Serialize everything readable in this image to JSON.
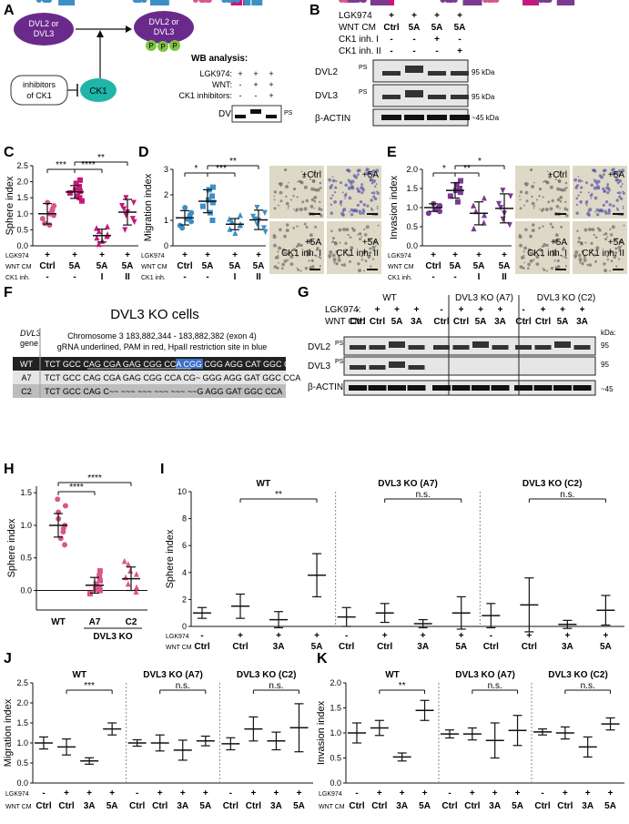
{
  "figure": {
    "panel_letters": [
      "A",
      "B",
      "C",
      "D",
      "E",
      "F",
      "G",
      "H",
      "I",
      "J",
      "K"
    ]
  },
  "colors": {
    "purple": "#6a2a8c",
    "teal": "#1fb5a8",
    "green": "#7dc242",
    "pink": "#d9568c",
    "magenta": "#c8177a",
    "blue": "#3b8fc7",
    "violet": "#7b3a92"
  },
  "panelA": {
    "dvl_node": "DVL2 or DVL3",
    "dvl_p_node": "DVL2 or DVL3",
    "phospho": "P",
    "inhibitors_box": "inhibitors of CK1",
    "ck1": "CK1",
    "wb_title": "WB analysis:",
    "row_labels": [
      "LGK974:",
      "WNT:",
      "CK1 inhibitors:"
    ],
    "row_signs": [
      [
        "+",
        "+",
        "+"
      ],
      [
        "-",
        "+",
        "+"
      ],
      [
        "-",
        "-",
        "+"
      ]
    ],
    "blot_label": "DVL",
    "ps_label": "PS"
  },
  "panelB": {
    "row_labels": [
      "LGK974",
      "WNT CM",
      "CK1 inh. I",
      "CK1 inh. II"
    ],
    "lanes": [
      [
        "+",
        "+",
        "+",
        "+"
      ],
      [
        "Ctrl",
        "5A",
        "5A",
        "5A"
      ],
      [
        "-",
        "-",
        "+",
        "-"
      ],
      [
        "-",
        "-",
        "-",
        "+"
      ]
    ],
    "blots": [
      "DVL2",
      "DVL3",
      "β-ACTIN"
    ],
    "ps": "PS",
    "mw": [
      "95 kDa",
      "95 kDa",
      "~45 kDa"
    ]
  },
  "panelC": {
    "ylabel": "Sphere index",
    "yticks": [
      "0.0",
      "0.5",
      "1.0",
      "1.5",
      "2.0",
      "2.5"
    ],
    "sig": [
      "***",
      "****",
      "**"
    ],
    "rows": {
      "labels": [
        "LGK974",
        "WNT CM",
        "CK1 inh."
      ],
      "values": [
        [
          "+",
          "+",
          "+",
          "+"
        ],
        [
          "Ctrl",
          "5A",
          "5A",
          "5A"
        ],
        [
          "-",
          "-",
          "I",
          "II"
        ]
      ]
    }
  },
  "panelD": {
    "ylabel": "Migration index",
    "yticks": [
      "0",
      "1",
      "2",
      "3"
    ],
    "sig": [
      "*",
      "***",
      "**"
    ],
    "rows": {
      "labels": [
        "LGK974",
        "WNT CM",
        "CK1 inh."
      ],
      "values": [
        [
          "+",
          "+",
          "+",
          "+"
        ],
        [
          "Ctrl",
          "5A",
          "5A",
          "5A"
        ],
        [
          "-",
          "-",
          "I",
          "II"
        ]
      ]
    },
    "images": [
      "+Ctrl",
      "+5A",
      "+5A CK1 inh. I",
      "+5A CK1 inh. II"
    ]
  },
  "panelE": {
    "ylabel": "Invasion index",
    "yticks": [
      "0.0",
      "0.5",
      "1.0",
      "1.5",
      "2.0"
    ],
    "sig": [
      "*",
      "**",
      "*"
    ],
    "rows": {
      "labels": [
        "LGK974",
        "WNT CM",
        "CK1 inh."
      ],
      "values": [
        [
          "+",
          "+",
          "+",
          "+"
        ],
        [
          "Ctrl",
          "5A",
          "5A",
          "5A"
        ],
        [
          "-",
          "-",
          "I",
          "II"
        ]
      ]
    },
    "images": [
      "+Ctrl",
      "+5A",
      "+5A CK1 inh. I",
      "+5A CK1 inh. II"
    ]
  },
  "panelF": {
    "title": "DVL3 KO cells",
    "gene_label": "DVL3 gene",
    "header_line1": "Chromosome 3 183,882,344 - 183,882,382 (exon 4)",
    "header_line2": "gRNA underlined, PAM in red, HpaII restriction site in blue",
    "rows": [
      {
        "label": "WT",
        "seq": "TCT GCC CAG CGA GAG CGG CCA CGG CGG AGG CAT GGC CCA"
      },
      {
        "label": "A7",
        "seq": "TCT GCC CAG CGA GAG CGG CCA CG~ GGG AGG GAT GGC CCA"
      },
      {
        "label": "C2",
        "seq": "TCT GCC CAG C~~ ~~~ ~~~ ~~~ ~~~ ~~G AGG GAT GGC CCA"
      }
    ]
  },
  "panelG": {
    "group_labels": [
      "WT",
      "DVL3 KO (A7)",
      "DVL3 KO (C2)"
    ],
    "row_labels": [
      "LGK974:",
      "WNT CM:"
    ],
    "lgk": [
      "-",
      "+",
      "+",
      "+",
      "-",
      "+",
      "+",
      "+",
      "-",
      "+",
      "+",
      "+"
    ],
    "wnt": [
      "Ctrl",
      "Ctrl",
      "5A",
      "3A",
      "Ctrl",
      "Ctrl",
      "5A",
      "3A",
      "Ctrl",
      "Ctrl",
      "5A",
      "3A"
    ],
    "kda_label": "kDa:",
    "blots": [
      "DVL2",
      "DVL3",
      "β-ACTIN"
    ],
    "ps": "PS",
    "mw": [
      "95",
      "95",
      "~45"
    ]
  },
  "panelH": {
    "ylabel": "Sphere index",
    "yticks": [
      "0.0",
      "0.5",
      "1.0",
      "1.5"
    ],
    "sig": [
      "****",
      "****"
    ],
    "categories": [
      "WT",
      "A7",
      "C2"
    ],
    "group_label": "DVL3 KO"
  },
  "panelI": {
    "ylabel": "Sphere index",
    "yticks": [
      "0",
      "2",
      "4",
      "6",
      "8",
      "10"
    ],
    "groups": [
      "WT",
      "DVL3 KO (A7)",
      "DVL3 KO (C2)"
    ],
    "sig": [
      "**",
      "n.s.",
      "n.s."
    ],
    "lgk": [
      "-",
      "+",
      "+",
      "+"
    ],
    "wnt": [
      "Ctrl",
      "Ctrl",
      "3A",
      "5A"
    ],
    "row_labels": [
      "LGK974",
      "WNT CM"
    ]
  },
  "panelJ": {
    "ylabel": "Migration index",
    "yticks": [
      "0.0",
      "0.5",
      "1.0",
      "1.5",
      "2.0",
      "2.5"
    ],
    "groups": [
      "WT",
      "DVL3 KO (A7)",
      "DVL3 KO (C2)"
    ],
    "sig": [
      "***",
      "n.s.",
      "n.s."
    ],
    "lgk": [
      "-",
      "+",
      "+",
      "+"
    ],
    "wnt": [
      "Ctrl",
      "Ctrl",
      "3A",
      "5A"
    ],
    "row_labels": [
      "LGK974",
      "WNT CM"
    ]
  },
  "panelK": {
    "ylabel": "Invasion index",
    "yticks": [
      "0.0",
      "0.5",
      "1.0",
      "1.5",
      "2.0"
    ],
    "groups": [
      "WT",
      "DVL3 KO (A7)",
      "DVL3 KO (C2)"
    ],
    "sig": [
      "**",
      "n.s.",
      "n.s."
    ],
    "lgk": [
      "-",
      "+",
      "+",
      "+"
    ],
    "wnt": [
      "Ctrl",
      "Ctrl",
      "3A",
      "5A"
    ],
    "row_labels": [
      "LGK974",
      "WNT CM"
    ]
  },
  "chart_data": [
    {
      "panel": "C",
      "type": "scatter",
      "ylabel": "Sphere index",
      "ylim": [
        0,
        2.5
      ],
      "categories": [
        "Ctrl",
        "5A",
        "5A I",
        "5A II"
      ],
      "means": [
        1.0,
        1.68,
        0.32,
        1.05
      ],
      "sd": [
        0.32,
        0.2,
        0.2,
        0.4
      ],
      "points": [
        [
          0.65,
          0.7,
          0.85,
          0.95,
          1.0,
          1.1,
          1.15,
          1.25,
          1.35
        ],
        [
          1.4,
          1.5,
          1.55,
          1.65,
          1.7,
          1.75,
          1.85,
          1.95,
          2.05
        ],
        [
          0.05,
          0.15,
          0.25,
          0.3,
          0.35,
          0.45,
          0.55,
          0.6
        ],
        [
          0.5,
          0.75,
          0.85,
          0.95,
          1.05,
          1.15,
          1.25,
          1.35,
          1.5
        ]
      ]
    },
    {
      "panel": "D",
      "type": "scatter",
      "ylabel": "Migration index",
      "ylim": [
        0,
        3
      ],
      "categories": [
        "Ctrl",
        "5A",
        "5A I",
        "5A II"
      ],
      "means": [
        1.1,
        1.75,
        0.85,
        1.02
      ],
      "sd": [
        0.28,
        0.45,
        0.22,
        0.38
      ],
      "points": [
        [
          0.7,
          0.8,
          0.95,
          1.05,
          1.1,
          1.2,
          1.3,
          1.5
        ],
        [
          1.0,
          1.3,
          1.55,
          1.7,
          1.8,
          1.95,
          2.2,
          2.3
        ],
        [
          0.5,
          0.65,
          0.8,
          0.85,
          0.95,
          1.05,
          1.2
        ],
        [
          0.55,
          0.7,
          0.85,
          1.0,
          1.05,
          1.15,
          1.3,
          1.5
        ]
      ]
    },
    {
      "panel": "E",
      "type": "scatter",
      "ylabel": "Invasion index",
      "ylim": [
        0,
        2
      ],
      "categories": [
        "Ctrl",
        "5A",
        "5A I",
        "5A II"
      ],
      "means": [
        1.0,
        1.45,
        0.85,
        0.98
      ],
      "sd": [
        0.1,
        0.2,
        0.3,
        0.38
      ],
      "points": [
        [
          0.85,
          0.9,
          0.95,
          1.0,
          1.0,
          1.05,
          1.1
        ],
        [
          1.15,
          1.3,
          1.4,
          1.45,
          1.5,
          1.6,
          1.7
        ],
        [
          0.45,
          0.6,
          0.8,
          0.9,
          1.05,
          1.25
        ],
        [
          0.55,
          0.7,
          0.85,
          1.0,
          1.1,
          1.3,
          1.45
        ]
      ]
    },
    {
      "panel": "H",
      "type": "scatter",
      "ylabel": "Sphere index",
      "ylim": [
        -0.3,
        1.6
      ],
      "categories": [
        "WT",
        "A7",
        "C2"
      ],
      "means": [
        1.0,
        0.08,
        0.18
      ],
      "sd": [
        0.18,
        0.12,
        0.18
      ],
      "points": [
        [
          0.7,
          0.8,
          0.9,
          0.95,
          1.0,
          1.1,
          1.2,
          1.3,
          1.4
        ],
        [
          -0.05,
          0.0,
          0.02,
          0.05,
          0.1,
          0.15,
          0.22,
          0.3
        ],
        [
          -0.02,
          0.05,
          0.1,
          0.2,
          0.25,
          0.3,
          0.4,
          0.45
        ]
      ]
    },
    {
      "panel": "I",
      "type": "scatter",
      "ylabel": "Sphere index",
      "ylim": [
        0,
        10
      ],
      "groups": [
        {
          "name": "WT",
          "means": [
            1.0,
            1.5,
            0.5,
            3.8
          ],
          "sd": [
            0.4,
            0.9,
            0.6,
            1.6
          ]
        },
        {
          "name": "DVL3 KO (A7)",
          "means": [
            0.7,
            1.0,
            0.2,
            1.0
          ],
          "sd": [
            0.7,
            0.7,
            0.3,
            1.2
          ]
        },
        {
          "name": "DVL3 KO (C2)",
          "means": [
            0.8,
            1.6,
            0.15,
            1.2
          ],
          "sd": [
            0.9,
            2.0,
            0.3,
            1.1
          ]
        }
      ]
    },
    {
      "panel": "J",
      "type": "scatter",
      "ylabel": "Migration index",
      "ylim": [
        0,
        2.5
      ],
      "groups": [
        {
          "name": "WT",
          "means": [
            1.0,
            0.9,
            0.55,
            1.35
          ],
          "sd": [
            0.15,
            0.2,
            0.08,
            0.15
          ]
        },
        {
          "name": "DVL3 KO (A7)",
          "means": [
            1.0,
            1.0,
            0.82,
            1.05
          ],
          "sd": [
            0.08,
            0.2,
            0.25,
            0.12
          ]
        },
        {
          "name": "DVL3 KO (C2)",
          "means": [
            0.98,
            1.35,
            1.05,
            1.38
          ],
          "sd": [
            0.15,
            0.3,
            0.22,
            0.6
          ]
        }
      ]
    },
    {
      "panel": "K",
      "type": "scatter",
      "ylabel": "Invasion index",
      "ylim": [
        0,
        2
      ],
      "groups": [
        {
          "name": "WT",
          "means": [
            1.0,
            1.1,
            0.52,
            1.45
          ],
          "sd": [
            0.2,
            0.15,
            0.08,
            0.2
          ]
        },
        {
          "name": "DVL3 KO (A7)",
          "means": [
            0.98,
            0.98,
            0.85,
            1.05
          ],
          "sd": [
            0.08,
            0.12,
            0.35,
            0.3
          ]
        },
        {
          "name": "DVL3 KO (C2)",
          "means": [
            1.02,
            1.0,
            0.72,
            1.18
          ],
          "sd": [
            0.06,
            0.12,
            0.2,
            0.12
          ]
        }
      ]
    }
  ]
}
